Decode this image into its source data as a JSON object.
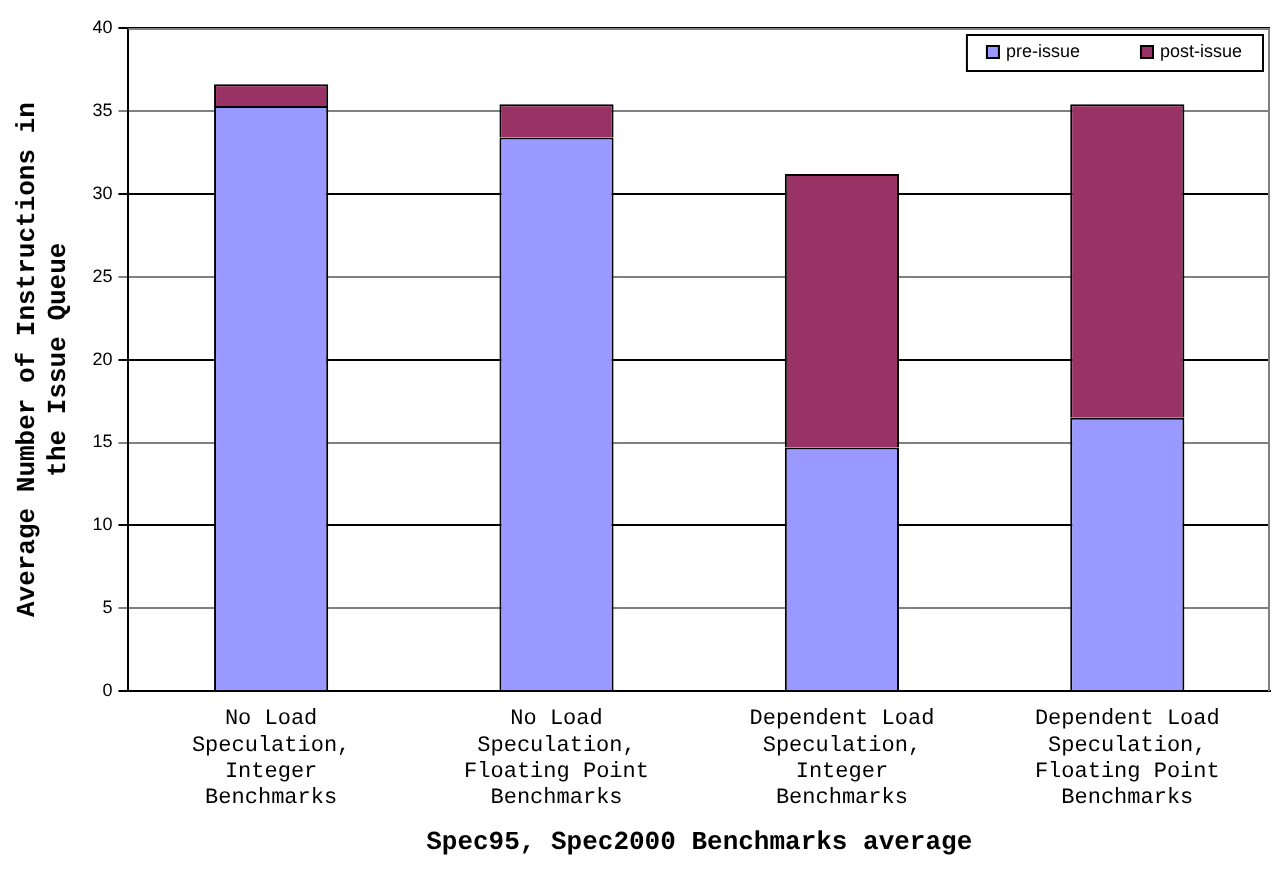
{
  "chart_data": {
    "type": "bar",
    "stacked": true,
    "xlabel": "Spec95, Spec2000 Benchmarks average",
    "ylabel": "Average Number of Instructions in the Issue Queue",
    "categories": [
      "No Load Speculation, Integer Benchmarks",
      "No Load Speculation, Floating Point Benchmarks",
      "Dependent Load Speculation, Integer Benchmarks",
      "Dependent Load Speculation, Floating Point Benchmarks"
    ],
    "series": [
      {
        "name": "pre-issue",
        "color": "#9999ff",
        "values": [
          35.3,
          33.4,
          14.7,
          16.5
        ]
      },
      {
        "name": "post-issue",
        "color": "#993366",
        "values": [
          1.3,
          2.0,
          16.5,
          18.9
        ]
      }
    ],
    "ylim": [
      0,
      40
    ],
    "yticks": [
      0,
      5,
      10,
      15,
      20,
      25,
      30,
      35,
      40
    ],
    "grid": "y",
    "legend": "top right"
  }
}
